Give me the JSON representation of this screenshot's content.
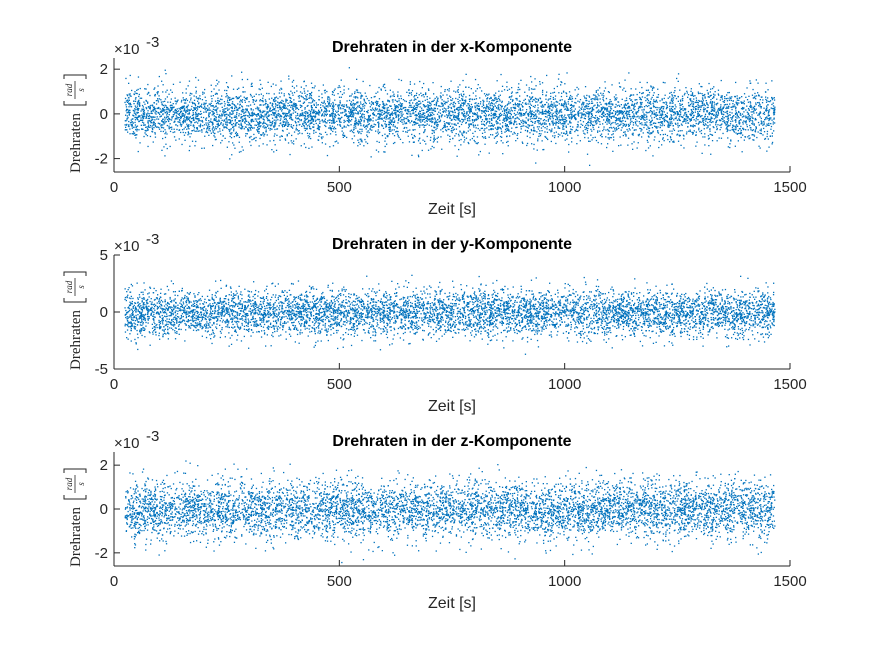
{
  "chart_data": [
    {
      "type": "scatter",
      "title": "Drehraten in der x-Komponente",
      "xlabel": "Zeit [s]",
      "ylabel": "Drehraten",
      "yunit_num": "rad",
      "yunit_den": "s",
      "exponent_label": "×10",
      "exponent_power": "-3",
      "xlim": [
        0,
        1500
      ],
      "ylim": [
        -2.6,
        2.5
      ],
      "xticks": [
        0,
        500,
        1000,
        1500
      ],
      "yticks": [
        -2,
        0,
        2
      ],
      "x_range": [
        23,
        1465
      ],
      "y_std": 0.6,
      "y_extent": 2.3,
      "color": "#0072BD",
      "grid": false
    },
    {
      "type": "scatter",
      "title": "Drehraten in der y-Komponente",
      "xlabel": "Zeit [s]",
      "ylabel": "Drehraten",
      "yunit_num": "rad",
      "yunit_den": "s",
      "exponent_label": "×10",
      "exponent_power": "-3",
      "xlim": [
        0,
        1500
      ],
      "ylim": [
        -5,
        5
      ],
      "xticks": [
        0,
        500,
        1000,
        1500
      ],
      "yticks": [
        -5,
        0,
        5
      ],
      "x_range": [
        23,
        1465
      ],
      "y_std": 1.0,
      "y_extent": 4.0,
      "color": "#0072BD",
      "grid": false
    },
    {
      "type": "scatter",
      "title": "Drehraten in der z-Komponente",
      "xlabel": "Zeit [s]",
      "ylabel": "Drehraten",
      "yunit_num": "rad",
      "yunit_den": "s",
      "exponent_label": "×10",
      "exponent_power": "-3",
      "xlim": [
        0,
        1500
      ],
      "ylim": [
        -2.6,
        2.6
      ],
      "xticks": [
        0,
        500,
        1000,
        1500
      ],
      "yticks": [
        -2,
        0,
        2
      ],
      "x_range": [
        23,
        1465
      ],
      "y_std": 0.65,
      "y_extent": 2.5,
      "color": "#0072BD",
      "grid": false
    }
  ]
}
